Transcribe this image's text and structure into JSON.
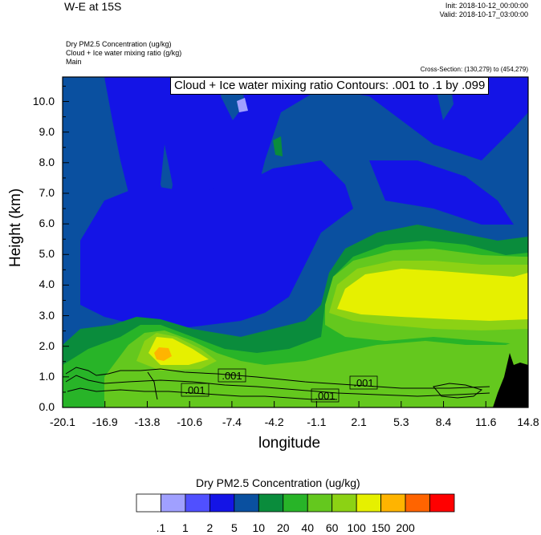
{
  "header": {
    "title": "W-E at 15S",
    "init": "Init: 2018-10-12_00:00:00",
    "valid": "Valid: 2018-10-17_03:00:00",
    "field1": "Dry PM2.5 Concentration   (ug/kg)",
    "field2": "Cloud + Ice water mixing ratio   (g/kg)",
    "field3": "Main",
    "cross_section": "Cross-Section: (130,279) to (454,279)"
  },
  "chart_data": {
    "type": "heatmap",
    "title": "W-E at 15S",
    "xlabel": "longitude",
    "ylabel": "Height (km)",
    "x_ticks": [
      "-20.1",
      "-16.9",
      "-13.8",
      "-10.6",
      "-7.4",
      "-4.2",
      "-1.1",
      "2.1",
      "5.3",
      "8.4",
      "11.6",
      "14.8"
    ],
    "y_ticks": [
      "0.0",
      "1.0",
      "2.0",
      "3.0",
      "4.0",
      "5.0",
      "6.0",
      "7.0",
      "8.0",
      "9.0",
      "10.0"
    ],
    "xlim": [
      -20.1,
      14.8
    ],
    "ylim": [
      0,
      10.8
    ],
    "contour_note": "Cloud + Ice water mixing ratio Contours: .001 to .1 by .099",
    "contour_labels": [
      ".001",
      ".001",
      ".001",
      ".001"
    ],
    "colorbar": {
      "title": "Dry PM2.5 Concentration  (ug/kg)",
      "levels": [
        ".1",
        "1",
        "2",
        "5",
        "10",
        "20",
        "40",
        "60",
        "100",
        "150",
        "200"
      ],
      "colors": [
        "#ffffff",
        "#a0a0ff",
        "#5050ff",
        "#1414e6",
        "#0a50a0",
        "#0a8c3c",
        "#28b428",
        "#64c81e",
        "#8cd214",
        "#e6f000",
        "#ffb400",
        "#ff6400",
        "#ff0000"
      ]
    }
  }
}
